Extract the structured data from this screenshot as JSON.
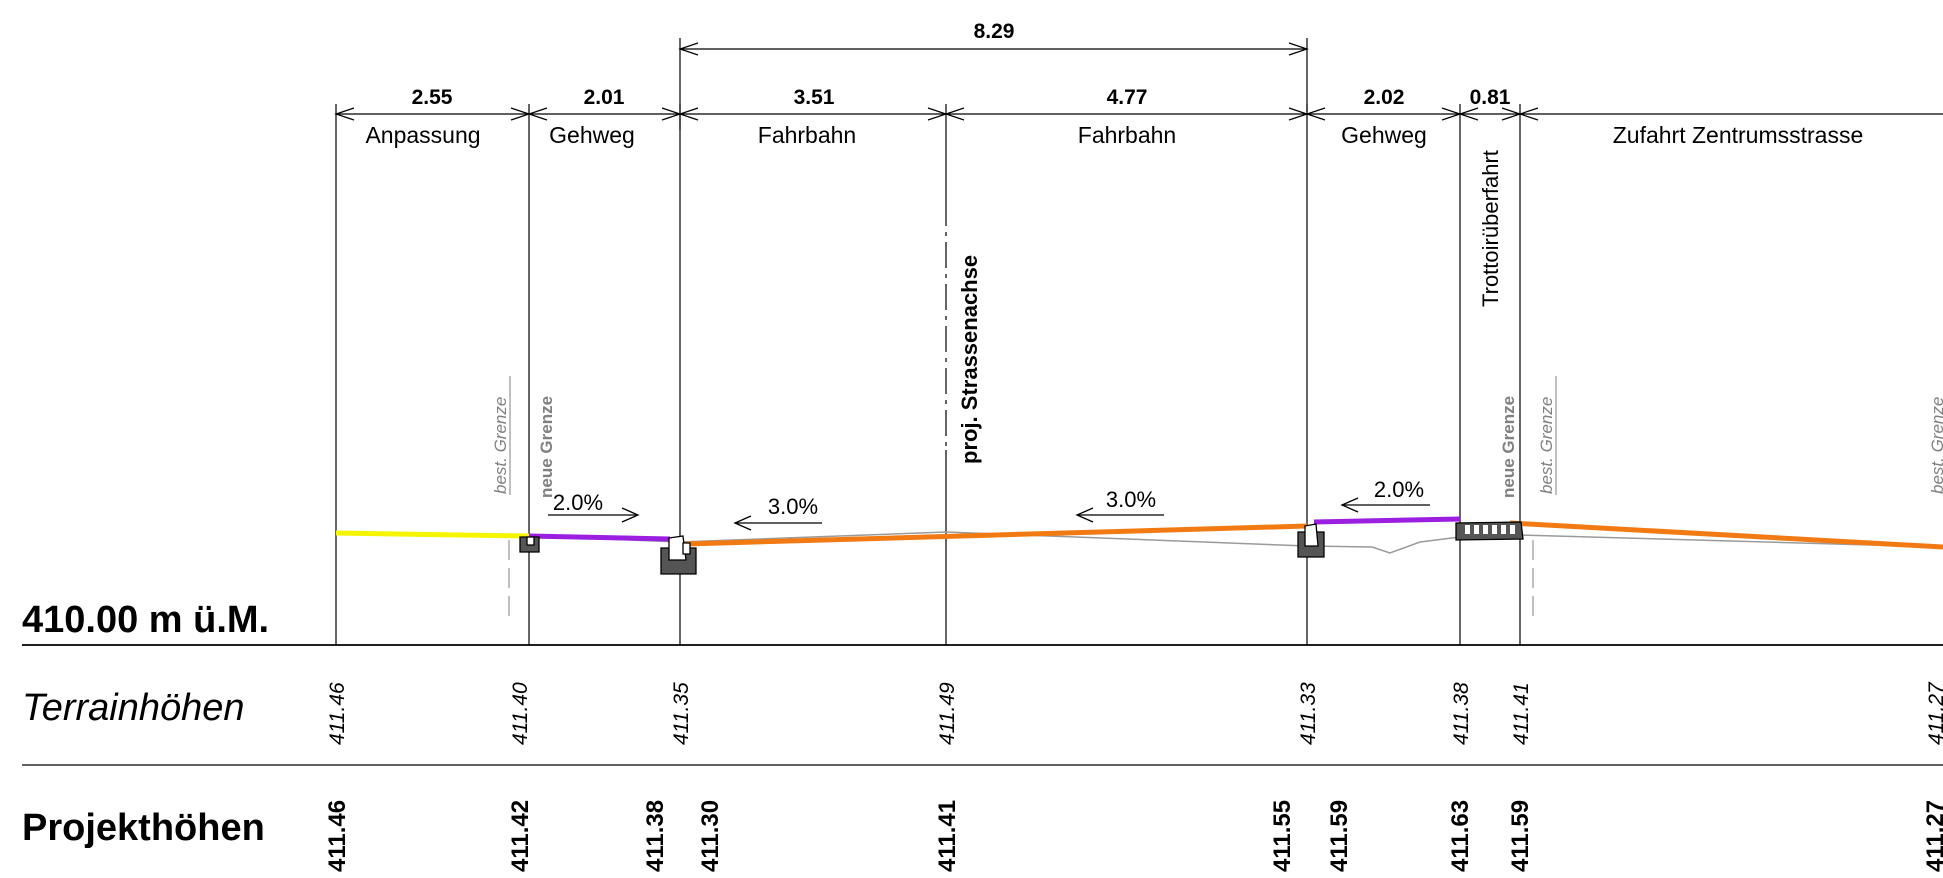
{
  "reference_level": "410.00 m ü.M.",
  "total_dimension": "8.29",
  "segments": [
    {
      "width": "2.55",
      "label": "Anpassung"
    },
    {
      "width": "2.01",
      "label": "Gehweg"
    },
    {
      "width": "3.51",
      "label": "Fahrbahn"
    },
    {
      "width": "4.77",
      "label": "Fahrbahn"
    },
    {
      "width": "2.02",
      "label": "Gehweg"
    },
    {
      "width": "0.81",
      "label": ""
    },
    {
      "width": "",
      "label": "Zufahrt Zentrumsstrasse"
    }
  ],
  "vertical_labels": {
    "axis": "proj. Strassenachse",
    "crossing": "Trottoirüberfahrt",
    "existing_boundary": "best. Grenze",
    "new_boundary": "neue Grenze"
  },
  "slopes": [
    "2.0%",
    "3.0%",
    "3.0%",
    "2.0%"
  ],
  "rows": {
    "terrain_label": "Terrainhöhen",
    "project_label": "Projekthöhen"
  },
  "terrain_heights": [
    "411.46",
    "411.40",
    "411.35",
    "411.49",
    "411.33",
    "411.38",
    "411.41",
    "411.27"
  ],
  "project_heights": [
    "411.46",
    "411.42",
    "411.38",
    "411.30",
    "411.41",
    "411.55",
    "411.59",
    "411.63",
    "411.59",
    "411.27"
  ],
  "colors": {
    "adjustment": "#f5f500",
    "sidewalk": "#9b1fe0",
    "roadway": "#f27a12",
    "terrain": "#9a9a9a",
    "curb": "#555555"
  }
}
